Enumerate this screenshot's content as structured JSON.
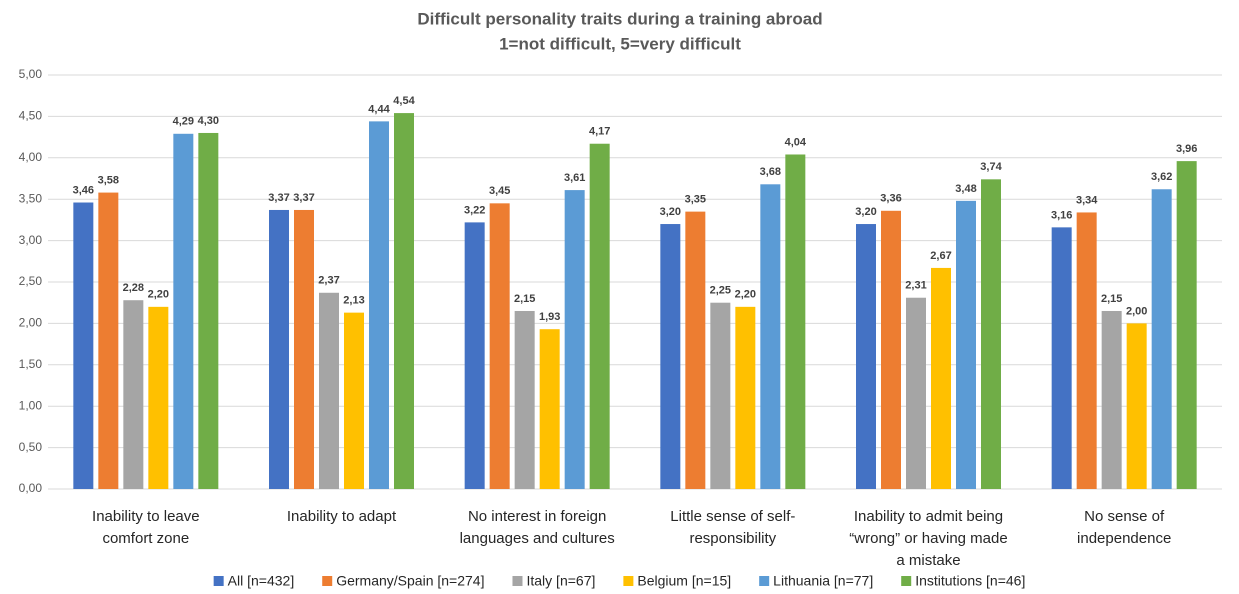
{
  "chart_data": {
    "type": "bar",
    "title": "Difficult personality traits during a training abroad",
    "subtitle": "1=not difficult, 5=very difficult",
    "categories": [
      [
        "Inability to leave",
        "comfort zone"
      ],
      [
        "Inability to adapt"
      ],
      [
        "No interest in foreign",
        "languages and cultures"
      ],
      [
        "Little sense of self-",
        "responsibility"
      ],
      [
        "Inability to admit being",
        "“wrong” or having made",
        "a mistake"
      ],
      [
        "No sense of",
        "independence"
      ]
    ],
    "series": [
      {
        "name": "All [n=432]",
        "color": "#4472c4",
        "values": [
          3.46,
          3.37,
          3.22,
          3.2,
          3.2,
          3.16
        ],
        "value_labels": [
          "3,46",
          "3,37",
          "3,22",
          "3,20",
          "3,20",
          "3,16"
        ]
      },
      {
        "name": "Germany/Spain [n=274]",
        "color": "#ed7d31",
        "values": [
          3.58,
          3.37,
          3.45,
          3.35,
          3.36,
          3.34
        ],
        "value_labels": [
          "3,58",
          "3,37",
          "3,45",
          "3,35",
          "3,36",
          "3,34"
        ]
      },
      {
        "name": "Italy [n=67]",
        "color": "#a5a5a5",
        "values": [
          2.28,
          2.37,
          2.15,
          2.25,
          2.31,
          2.15
        ],
        "value_labels": [
          "2,28",
          "2,37",
          "2,15",
          "2,25",
          "2,31",
          "2,15"
        ]
      },
      {
        "name": "Belgium [n=15]",
        "color": "#ffc000",
        "values": [
          2.2,
          2.13,
          1.93,
          2.2,
          2.67,
          2.0
        ],
        "value_labels": [
          "2,20",
          "2,13",
          "1,93",
          "2,20",
          "2,67",
          "2,00"
        ]
      },
      {
        "name": "Lithuania [n=77]",
        "color": "#5b9bd5",
        "values": [
          4.29,
          4.44,
          3.61,
          3.68,
          3.48,
          3.62
        ],
        "value_labels": [
          "4,29",
          "4,44",
          "3,61",
          "3,68",
          "3,48",
          "3,62"
        ]
      },
      {
        "name": "Institutions [n=46]",
        "color": "#70ad47",
        "values": [
          4.3,
          4.54,
          4.17,
          4.04,
          3.74,
          3.96
        ],
        "value_labels": [
          "4,30",
          "4,54",
          "4,17",
          "4,04",
          "3,74",
          "3,96"
        ]
      }
    ],
    "ylim": [
      0,
      5
    ],
    "yticks": [
      {
        "value": 0,
        "label": "0,00"
      },
      {
        "value": 0.5,
        "label": "0,50"
      },
      {
        "value": 1,
        "label": "1,00"
      },
      {
        "value": 1.5,
        "label": "1,50"
      },
      {
        "value": 2,
        "label": "2,00"
      },
      {
        "value": 2.5,
        "label": "2,50"
      },
      {
        "value": 3,
        "label": "3,00"
      },
      {
        "value": 3.5,
        "label": "3,50"
      },
      {
        "value": 4,
        "label": "4,00"
      },
      {
        "value": 4.5,
        "label": "4,50"
      },
      {
        "value": 5,
        "label": "5,00"
      }
    ],
    "grid": true,
    "legend": "bottom"
  }
}
